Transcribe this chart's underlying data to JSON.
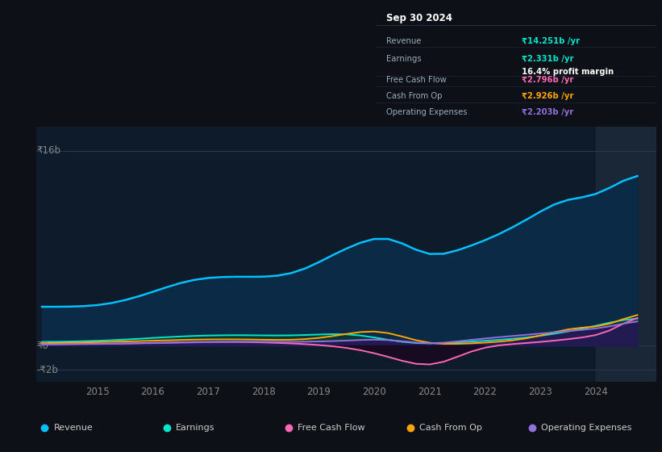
{
  "bg_color": "#0d1117",
  "chart_bg": "#0d1b2a",
  "y_label_top": "₹16b",
  "y_label_zero": "₹0",
  "y_label_bottom": "-₹2b",
  "x_ticks": [
    2015,
    2016,
    2017,
    2018,
    2019,
    2020,
    2021,
    2022,
    2023,
    2024
  ],
  "years": [
    2014.0,
    2014.25,
    2014.5,
    2014.75,
    2015.0,
    2015.25,
    2015.5,
    2015.75,
    2016.0,
    2016.25,
    2016.5,
    2016.75,
    2017.0,
    2017.25,
    2017.5,
    2017.75,
    2018.0,
    2018.25,
    2018.5,
    2018.75,
    2019.0,
    2019.25,
    2019.5,
    2019.75,
    2020.0,
    2020.25,
    2020.5,
    2020.75,
    2021.0,
    2021.25,
    2021.5,
    2021.75,
    2022.0,
    2022.25,
    2022.5,
    2022.75,
    2023.0,
    2023.25,
    2023.5,
    2023.75,
    2024.0,
    2024.25,
    2024.5,
    2024.75
  ],
  "revenue": [
    3.2,
    3.15,
    3.18,
    3.22,
    3.25,
    3.4,
    3.7,
    4.0,
    4.4,
    4.8,
    5.2,
    5.5,
    5.6,
    5.65,
    5.68,
    5.65,
    5.6,
    5.65,
    5.8,
    6.2,
    6.8,
    7.5,
    8.0,
    8.5,
    9.0,
    9.2,
    8.5,
    7.8,
    7.0,
    7.4,
    7.8,
    8.2,
    8.6,
    9.1,
    9.7,
    10.3,
    11.0,
    11.8,
    12.3,
    12.0,
    12.2,
    12.8,
    13.8,
    14.251
  ],
  "earnings": [
    0.28,
    0.3,
    0.32,
    0.35,
    0.38,
    0.42,
    0.48,
    0.55,
    0.62,
    0.68,
    0.75,
    0.8,
    0.82,
    0.84,
    0.86,
    0.85,
    0.82,
    0.8,
    0.82,
    0.85,
    0.9,
    0.95,
    1.0,
    0.9,
    0.65,
    0.45,
    0.25,
    0.15,
    0.12,
    0.18,
    0.25,
    0.32,
    0.38,
    0.45,
    0.55,
    0.65,
    0.75,
    0.95,
    1.15,
    1.35,
    1.6,
    1.9,
    2.15,
    2.331
  ],
  "free_cash_flow": [
    0.08,
    0.1,
    0.12,
    0.13,
    0.14,
    0.15,
    0.17,
    0.19,
    0.21,
    0.24,
    0.27,
    0.29,
    0.29,
    0.3,
    0.3,
    0.28,
    0.25,
    0.22,
    0.18,
    0.12,
    0.05,
    -0.05,
    -0.15,
    -0.35,
    -0.6,
    -0.9,
    -1.3,
    -1.6,
    -1.9,
    -1.5,
    -0.9,
    -0.4,
    -0.05,
    0.05,
    0.12,
    0.2,
    0.28,
    0.38,
    0.52,
    0.65,
    0.75,
    0.9,
    1.8,
    2.796
  ],
  "cash_from_op": [
    0.18,
    0.2,
    0.22,
    0.25,
    0.28,
    0.3,
    0.33,
    0.36,
    0.39,
    0.42,
    0.46,
    0.49,
    0.5,
    0.51,
    0.51,
    0.5,
    0.47,
    0.44,
    0.44,
    0.48,
    0.58,
    0.75,
    0.95,
    1.15,
    1.35,
    1.15,
    0.75,
    0.35,
    0.08,
    0.08,
    0.12,
    0.18,
    0.22,
    0.28,
    0.38,
    0.55,
    0.75,
    1.1,
    1.45,
    1.55,
    1.45,
    1.55,
    2.1,
    2.926
  ],
  "operating_expenses": [
    0.08,
    0.09,
    0.1,
    0.11,
    0.12,
    0.13,
    0.15,
    0.17,
    0.19,
    0.21,
    0.23,
    0.25,
    0.27,
    0.29,
    0.31,
    0.32,
    0.3,
    0.28,
    0.28,
    0.3,
    0.33,
    0.36,
    0.38,
    0.45,
    0.55,
    0.5,
    0.38,
    0.18,
    0.08,
    0.18,
    0.33,
    0.48,
    0.58,
    0.68,
    0.78,
    0.88,
    0.98,
    1.08,
    1.18,
    1.28,
    1.38,
    1.48,
    1.75,
    2.203
  ],
  "revenue_color": "#00bfff",
  "earnings_color": "#00e5cc",
  "fcf_color": "#ff69b4",
  "cashop_color": "#ffa500",
  "opex_color": "#9370db",
  "ylim_top": 18.0,
  "ylim_bottom": -3.0,
  "xmin": 2013.9,
  "xmax": 2025.1,
  "highlight_x_start": 2024.0,
  "highlight_x_end": 2025.1,
  "table_title": "Sep 30 2024",
  "table_rows": [
    {
      "label": "Revenue",
      "value": "₹14.251b /yr",
      "val_color": "#00e5cc",
      "extra": null
    },
    {
      "label": "Earnings",
      "value": "₹2.331b /yr",
      "val_color": "#00e5cc",
      "extra": {
        "text": "16.4% profit margin",
        "color": "#ffffff"
      }
    },
    {
      "label": "Free Cash Flow",
      "value": "₹2.796b /yr",
      "val_color": "#ff69b4",
      "extra": null
    },
    {
      "label": "Cash From Op",
      "value": "₹2.926b /yr",
      "val_color": "#ffa500",
      "extra": null
    },
    {
      "label": "Operating Expenses",
      "value": "₹2.203b /yr",
      "val_color": "#9370db",
      "extra": null
    }
  ],
  "legend_items": [
    {
      "color": "#00bfff",
      "label": "Revenue"
    },
    {
      "color": "#00e5cc",
      "label": "Earnings"
    },
    {
      "color": "#ff69b4",
      "label": "Free Cash Flow"
    },
    {
      "color": "#ffa500",
      "label": "Cash From Op"
    },
    {
      "color": "#9370db",
      "label": "Operating Expenses"
    }
  ]
}
